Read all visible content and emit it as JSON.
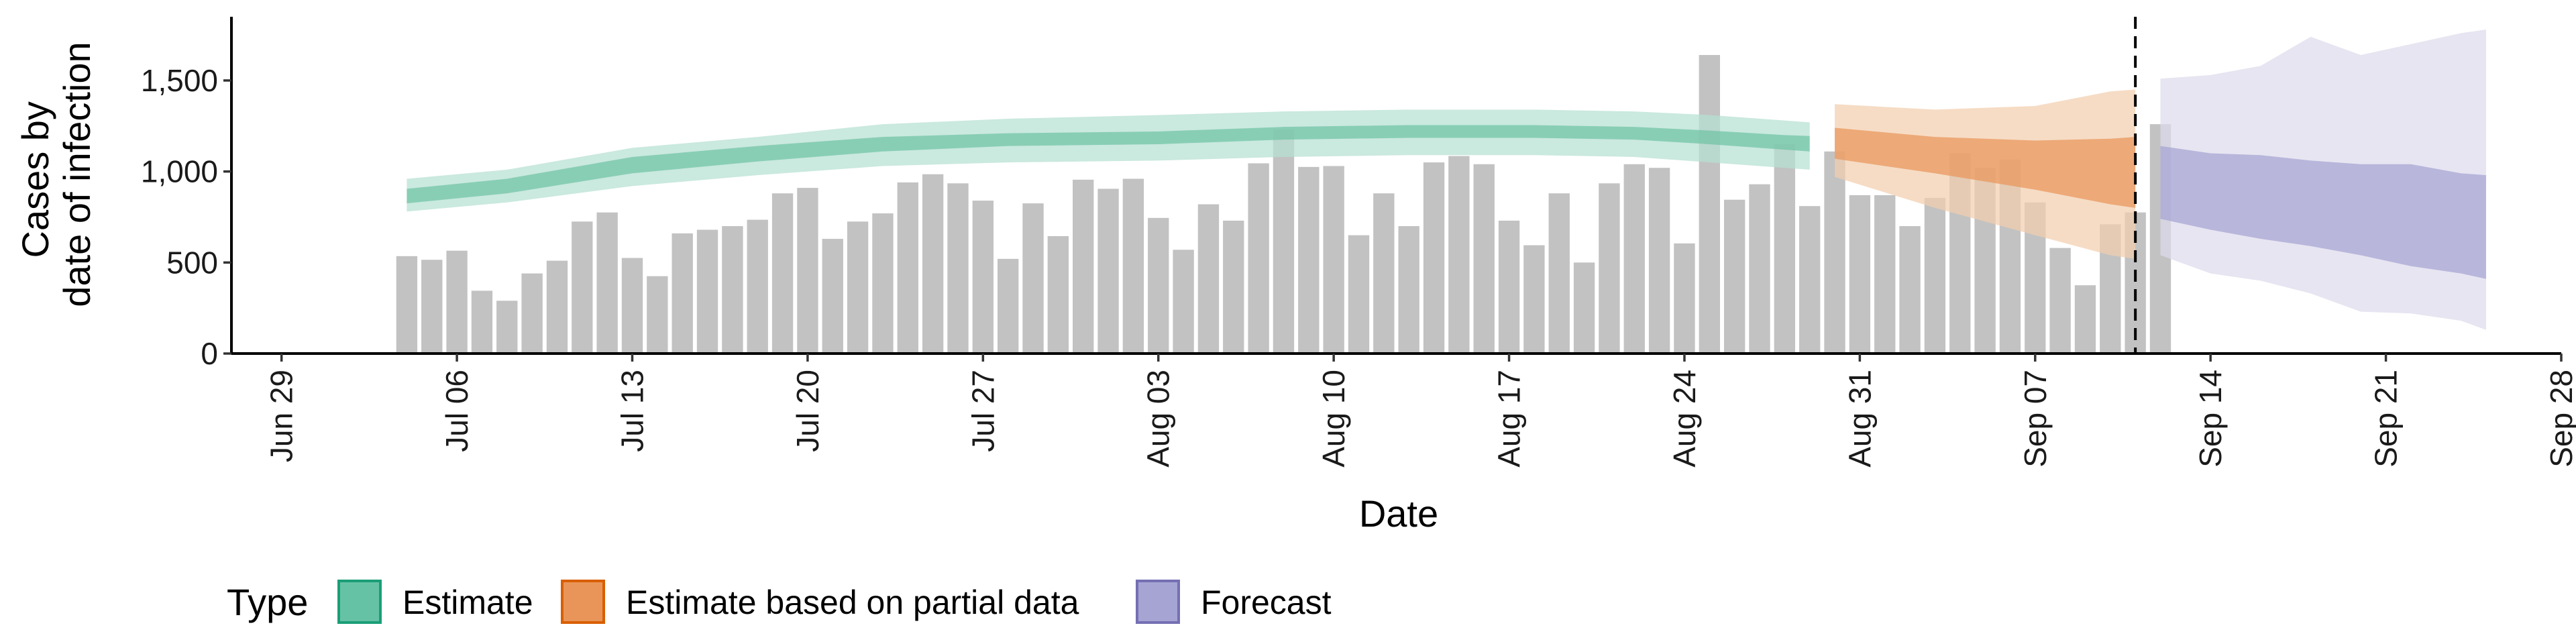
{
  "chart_data": {
    "type": "bar",
    "xlabel": "Date",
    "ylabel": [
      "Cases by",
      "date of infection"
    ],
    "x_range": [
      "2021-06-27",
      "2021-09-28"
    ],
    "ylim": [
      0,
      1850
    ],
    "x_ticks": [
      {
        "date": "2021-06-29",
        "label": "Jun 29"
      },
      {
        "date": "2021-07-06",
        "label": "Jul 06"
      },
      {
        "date": "2021-07-13",
        "label": "Jul 13"
      },
      {
        "date": "2021-07-20",
        "label": "Jul 20"
      },
      {
        "date": "2021-07-27",
        "label": "Jul 27"
      },
      {
        "date": "2021-08-03",
        "label": "Aug 03"
      },
      {
        "date": "2021-08-10",
        "label": "Aug 10"
      },
      {
        "date": "2021-08-17",
        "label": "Aug 17"
      },
      {
        "date": "2021-08-24",
        "label": "Aug 24"
      },
      {
        "date": "2021-08-31",
        "label": "Aug 31"
      },
      {
        "date": "2021-09-07",
        "label": "Sep 07"
      },
      {
        "date": "2021-09-14",
        "label": "Sep 14"
      },
      {
        "date": "2021-09-21",
        "label": "Sep 21"
      },
      {
        "date": "2021-09-28",
        "label": "Sep 28"
      }
    ],
    "y_ticks": [
      {
        "value": 0,
        "label": "0"
      },
      {
        "value": 500,
        "label": "500"
      },
      {
        "value": 1000,
        "label": "1,000"
      },
      {
        "value": 1500,
        "label": "1,500"
      }
    ],
    "bars": {
      "color": "#bdbdbd",
      "start_date": "2021-07-04",
      "values": [
        535,
        515,
        565,
        345,
        290,
        440,
        510,
        725,
        775,
        525,
        425,
        660,
        680,
        700,
        735,
        880,
        910,
        630,
        725,
        770,
        940,
        985,
        935,
        840,
        520,
        825,
        645,
        955,
        905,
        960,
        745,
        570,
        820,
        730,
        1045,
        1230,
        1025,
        1030,
        650,
        880,
        700,
        1050,
        1085,
        1040,
        730,
        595,
        880,
        500,
        935,
        1040,
        1020,
        605,
        1640,
        845,
        930,
        1150,
        810,
        1110,
        870,
        870,
        700,
        855,
        1100,
        1020,
        1065,
        830,
        580,
        375,
        710,
        775,
        1260
      ]
    },
    "vline_date": "2021-09-11",
    "legend": {
      "title": "Type",
      "position": "bottom",
      "items": [
        {
          "label": "Estimate",
          "fill": "#66c2a5",
          "stroke": "#1b9e77"
        },
        {
          "label": "Estimate based on partial data",
          "fill": "#e9955a",
          "stroke": "#d95f02"
        },
        {
          "label": "Forecast",
          "fill": "#a6a4d3",
          "stroke": "#7570b3"
        }
      ]
    },
    "series": [
      {
        "name": "Estimate",
        "outer_color": "#b6e0d2",
        "inner_color": "#6fc3a5",
        "band": [
          {
            "date": "2021-07-04",
            "outer": [
              780,
              960
            ],
            "inner": [
              825,
              905
            ]
          },
          {
            "date": "2021-07-08",
            "outer": [
              830,
              1010
            ],
            "inner": [
              880,
              960
            ]
          },
          {
            "date": "2021-07-13",
            "outer": [
              920,
              1130
            ],
            "inner": [
              990,
              1080
            ]
          },
          {
            "date": "2021-07-18",
            "outer": [
              980,
              1190
            ],
            "inner": [
              1055,
              1140
            ]
          },
          {
            "date": "2021-07-23",
            "outer": [
              1030,
              1260
            ],
            "inner": [
              1110,
              1190
            ]
          },
          {
            "date": "2021-07-28",
            "outer": [
              1050,
              1290
            ],
            "inner": [
              1140,
              1210
            ]
          },
          {
            "date": "2021-08-03",
            "outer": [
              1060,
              1310
            ],
            "inner": [
              1150,
              1220
            ]
          },
          {
            "date": "2021-08-08",
            "outer": [
              1080,
              1330
            ],
            "inner": [
              1175,
              1245
            ]
          },
          {
            "date": "2021-08-13",
            "outer": [
              1090,
              1340
            ],
            "inner": [
              1185,
              1255
            ]
          },
          {
            "date": "2021-08-18",
            "outer": [
              1090,
              1340
            ],
            "inner": [
              1185,
              1255
            ]
          },
          {
            "date": "2021-08-22",
            "outer": [
              1080,
              1330
            ],
            "inner": [
              1175,
              1245
            ]
          },
          {
            "date": "2021-08-25",
            "outer": [
              1050,
              1310
            ],
            "inner": [
              1150,
              1225
            ]
          },
          {
            "date": "2021-08-28",
            "outer": [
              1020,
              1280
            ],
            "inner": [
              1120,
              1200
            ]
          },
          {
            "date": "2021-08-29",
            "outer": [
              1010,
              1270
            ],
            "inner": [
              1110,
              1195
            ]
          }
        ]
      },
      {
        "name": "Estimate based on partial data",
        "outer_color": "#f3cfae",
        "inner_color": "#e9955a",
        "band": [
          {
            "date": "2021-08-30",
            "outer": [
              970,
              1370
            ],
            "inner": [
              1070,
              1240
            ]
          },
          {
            "date": "2021-09-03",
            "outer": [
              800,
              1340
            ],
            "inner": [
              990,
              1190
            ]
          },
          {
            "date": "2021-09-07",
            "outer": [
              650,
              1360
            ],
            "inner": [
              900,
              1170
            ]
          },
          {
            "date": "2021-09-10",
            "outer": [
              540,
              1440
            ],
            "inner": [
              820,
              1180
            ]
          },
          {
            "date": "2021-09-11",
            "outer": [
              520,
              1450
            ],
            "inner": [
              800,
              1190
            ]
          }
        ]
      },
      {
        "name": "Forecast",
        "outer_color": "#dcdbec",
        "inner_color": "#a6a4d3",
        "band": [
          {
            "date": "2021-09-12",
            "outer": [
              540,
              1510
            ],
            "inner": [
              740,
              1140
            ]
          },
          {
            "date": "2021-09-14",
            "outer": [
              440,
              1530
            ],
            "inner": [
              680,
              1100
            ]
          },
          {
            "date": "2021-09-16",
            "outer": [
              400,
              1580
            ],
            "inner": [
              630,
              1090
            ]
          },
          {
            "date": "2021-09-18",
            "outer": [
              330,
              1740
            ],
            "inner": [
              590,
              1060
            ]
          },
          {
            "date": "2021-09-20",
            "outer": [
              230,
              1640
            ],
            "inner": [
              540,
              1040
            ]
          },
          {
            "date": "2021-09-22",
            "outer": [
              220,
              1700
            ],
            "inner": [
              480,
              1040
            ]
          },
          {
            "date": "2021-09-24",
            "outer": [
              180,
              1760
            ],
            "inner": [
              440,
              990
            ]
          },
          {
            "date": "2021-09-25",
            "outer": [
              130,
              1780
            ],
            "inner": [
              410,
              980
            ]
          }
        ]
      }
    ]
  }
}
